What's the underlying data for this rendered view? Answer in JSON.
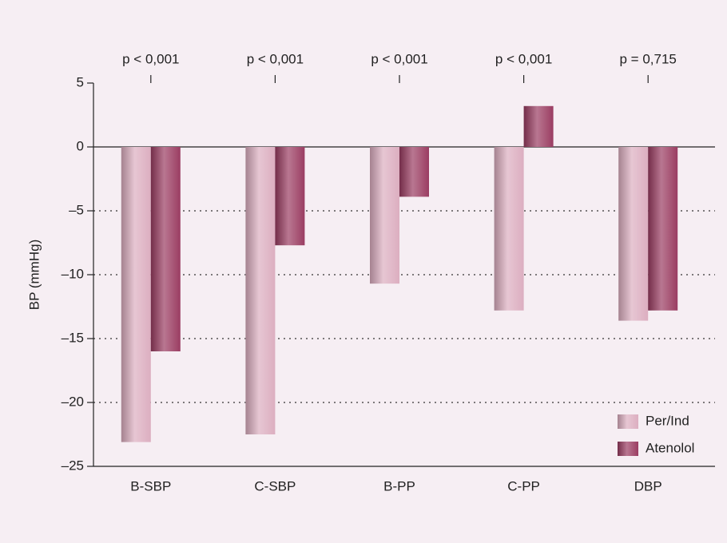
{
  "chart_data": {
    "type": "bar",
    "y_label": "BP (mmHg)",
    "categories": [
      "B-SBP",
      "C-SBP",
      "B-PP",
      "C-PP",
      "DBP"
    ],
    "annotations": [
      "p < 0,001",
      "p < 0,001",
      "p < 0,001",
      "p < 0,001",
      "p = 0,715"
    ],
    "series": [
      {
        "name": "Per/Ind",
        "color": "#dcaec0",
        "values": [
          -23.1,
          -22.5,
          -10.7,
          -12.8,
          -13.6
        ]
      },
      {
        "name": "Atenolol",
        "color": "#9a3c62",
        "values": [
          -16.0,
          -7.7,
          -3.9,
          3.2,
          -12.8
        ]
      }
    ],
    "ylim": [
      -25,
      5
    ],
    "yticks": [
      {
        "value": -25,
        "label": "–25"
      },
      {
        "value": -20,
        "label": "–20"
      },
      {
        "value": -15,
        "label": "–15"
      },
      {
        "value": -10,
        "label": "–10"
      },
      {
        "value": -5,
        "label": "–5"
      },
      0,
      5
    ],
    "grid": true,
    "legend": "lower right"
  }
}
